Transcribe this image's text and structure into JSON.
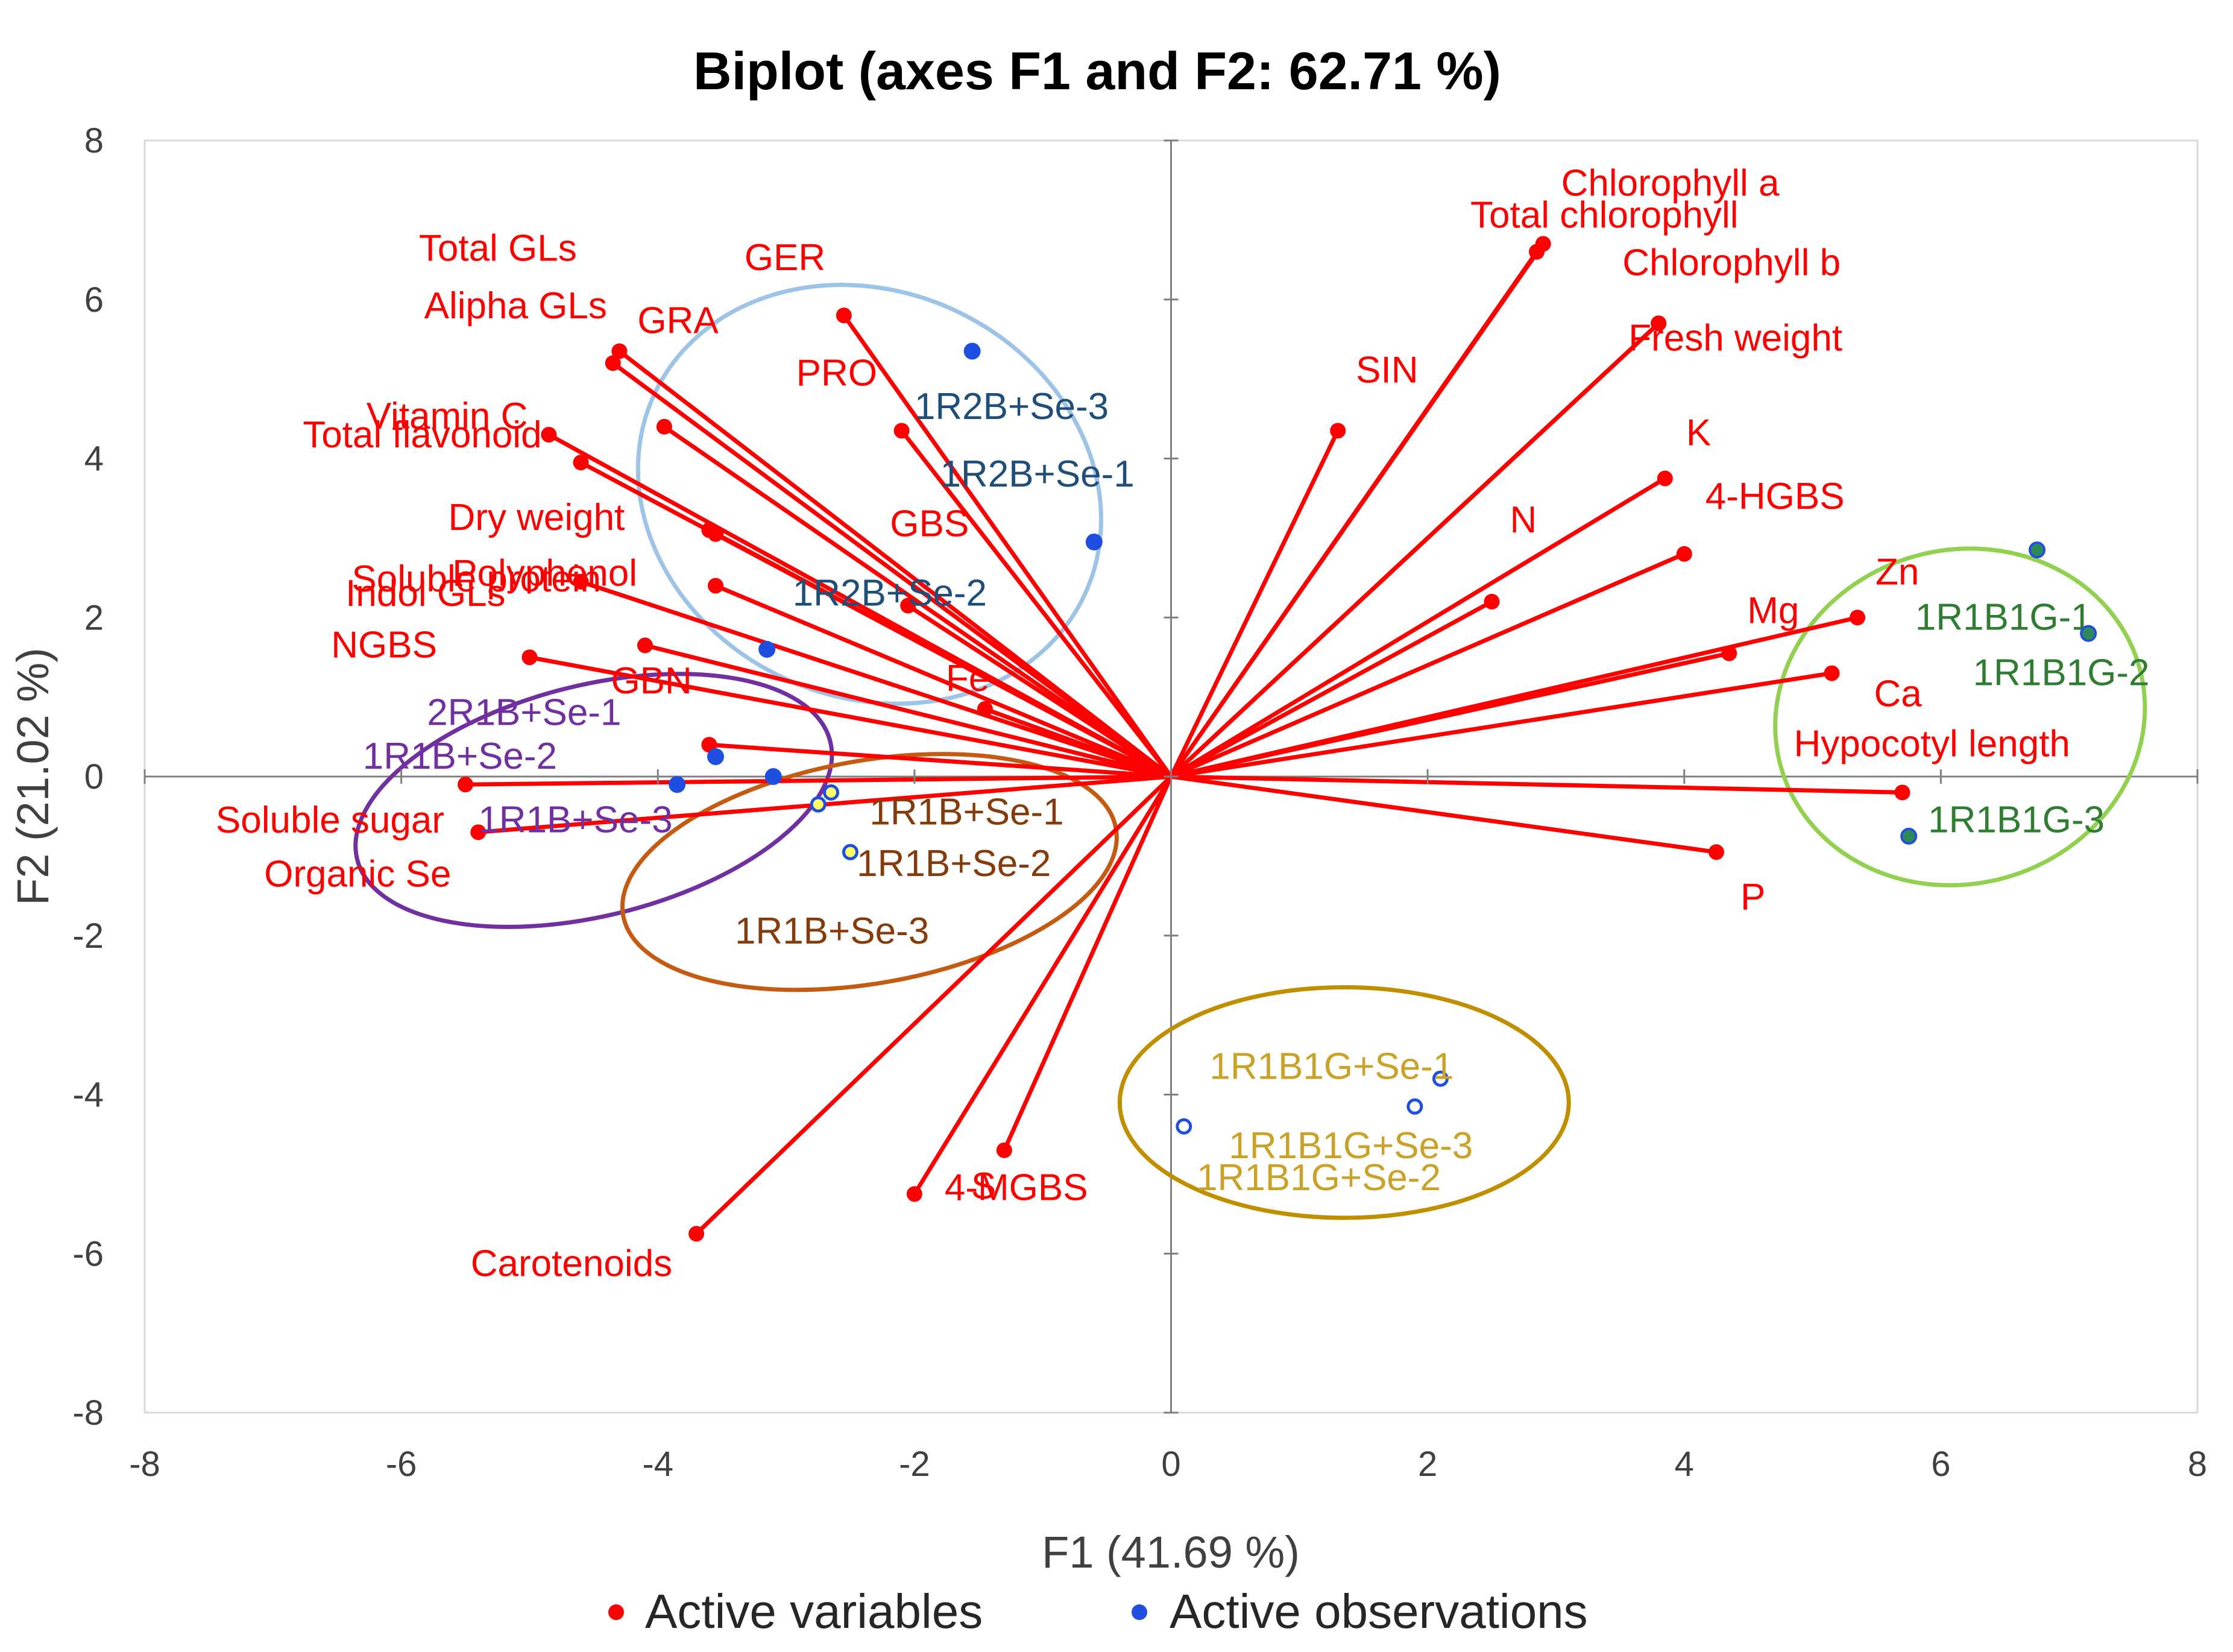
{
  "chart_data": {
    "type": "scatter",
    "title": "Biplot (axes F1 and F2: 62.71 %)",
    "xlabel": "F1 (41.69 %)",
    "ylabel": "F2 (21.02 %)",
    "xlim": [
      -8,
      8
    ],
    "ylim": [
      -8,
      8
    ],
    "xticks": [
      "-8",
      "-6",
      "-4",
      "-2",
      "0",
      "2",
      "4",
      "6",
      "8"
    ],
    "yticks": [
      "-8",
      "-6",
      "-4",
      "-2",
      "0",
      "2",
      "4",
      "6",
      "8"
    ],
    "legend": [
      {
        "label": "Active variables",
        "color": "#ff0000"
      },
      {
        "label": "Active observations",
        "color": "#1f4fe0"
      }
    ],
    "variables": [
      {
        "name": "Chlorophyll a",
        "label": "Chlorophyll a",
        "x": 2.9,
        "y": 6.7
      },
      {
        "name": "Total chlorophyll",
        "label": "Total chlorophyll",
        "x": 2.85,
        "y": 6.6
      },
      {
        "name": "Chlorophyll b",
        "label": "Chlorophyll b",
        "x": 3.8,
        "y": 5.7
      },
      {
        "name": "Fresh weight",
        "label": "Fresh weight",
        "x": 3.8,
        "y": 5.7
      },
      {
        "name": "SIN",
        "label": "SIN",
        "x": 1.3,
        "y": 4.35
      },
      {
        "name": "K",
        "label": "K",
        "x": 3.85,
        "y": 3.75
      },
      {
        "name": "4-HGBS",
        "label": "4-HGBS",
        "x": 4.0,
        "y": 2.8
      },
      {
        "name": "N",
        "label": "N",
        "x": 2.5,
        "y": 2.2
      },
      {
        "name": "Zn",
        "label": "Zn",
        "x": 5.35,
        "y": 2.0
      },
      {
        "name": "Ca",
        "label": "Ca",
        "x": 5.15,
        "y": 1.3
      },
      {
        "name": "Mg",
        "label": "Mg",
        "x": 4.35,
        "y": 1.55
      },
      {
        "name": "Hypocotyl length",
        "label": "Hypocotyl length",
        "x": 5.7,
        "y": -0.2
      },
      {
        "name": "P",
        "label": "P",
        "x": 4.25,
        "y": -0.95
      },
      {
        "name": "GER",
        "label": "GER",
        "x": -2.55,
        "y": 5.8
      },
      {
        "name": "GRA",
        "label": "GRA",
        "x": -4.3,
        "y": 5.35
      },
      {
        "name": "Total GLs",
        "label": "Total GLs",
        "x": -4.35,
        "y": 5.2
      },
      {
        "name": "Alipha GLs",
        "label": "Alipha GLs",
        "x": -3.95,
        "y": 4.4
      },
      {
        "name": "Vitamin C",
        "label": "Vitamin C",
        "x": -4.85,
        "y": 4.3
      },
      {
        "name": "Total flavonoid",
        "label": "Total flavonoid",
        "x": -4.6,
        "y": 3.95
      },
      {
        "name": "PRO",
        "label": "PRO",
        "x": -2.1,
        "y": 4.35
      },
      {
        "name": "Dry weight",
        "label": "Dry weight",
        "x": -3.6,
        "y": 3.1
      },
      {
        "name": "Soluble protein",
        "label": "Soluble protein",
        "x": -3.55,
        "y": 3.05
      },
      {
        "name": "Polyphenol",
        "label": "Polyphenol",
        "x": -3.55,
        "y": 2.4
      },
      {
        "name": "GBS",
        "label": "GBS",
        "x": -2.05,
        "y": 2.15
      },
      {
        "name": "Indol GLs",
        "label": "Indol GLs",
        "x": -4.6,
        "y": 2.45
      },
      {
        "name": "NGBS",
        "label": "NGBS",
        "x": -4.1,
        "y": 1.65
      },
      {
        "name": "Fe",
        "label": "Fe",
        "x": -1.45,
        "y": 0.85
      },
      {
        "name": "GBN",
        "label": "GBN",
        "x": -5.0,
        "y": 1.5
      },
      {
        "name": "GBN-2",
        "label": "",
        "x": -3.6,
        "y": 0.4
      },
      {
        "name": "Soluble sugar",
        "label": "Soluble sugar",
        "x": -5.5,
        "y": -0.1
      },
      {
        "name": "Organic Se",
        "label": "Organic Se",
        "x": -5.4,
        "y": -0.7
      },
      {
        "name": "S",
        "label": "S",
        "x": -1.3,
        "y": -4.7
      },
      {
        "name": "4-MGBS",
        "label": "4-MGBS",
        "x": -2.0,
        "y": -5.25
      },
      {
        "name": "Carotenoids",
        "label": "Carotenoids",
        "x": -3.7,
        "y": -5.75
      }
    ],
    "observations": [
      {
        "label": "1R2B+Se-3",
        "x": -1.55,
        "y": 5.35,
        "group": "1R2B+Se"
      },
      {
        "label": "1R2B+Se-1",
        "x": -0.6,
        "y": 2.95,
        "group": "1R2B+Se"
      },
      {
        "label": "1R2B+Se-2",
        "x": -3.15,
        "y": 1.6,
        "group": "1R2B+Se"
      },
      {
        "label": "2R1B+Se-1",
        "x": -3.55,
        "y": 0.25,
        "group": "2R1B+Se"
      },
      {
        "label": "1R1B+Se-2",
        "x": -3.85,
        "y": -0.1,
        "group": "2R1B+Se"
      },
      {
        "label": "1R1B+Se-3",
        "x": -3.1,
        "y": 0.0,
        "group": "2R1B+Se"
      },
      {
        "label": "1R1B+Se-1",
        "x": -2.65,
        "y": -0.2,
        "group": "1R1B+Se"
      },
      {
        "label": "1R1B+Se-2",
        "x": -2.5,
        "y": -0.95,
        "group": "1R1B+Se"
      },
      {
        "label": "1R1B+Se-3",
        "x": -2.75,
        "y": -0.35,
        "group": "1R1B+Se"
      },
      {
        "label": "1R1B1G-1",
        "x": 6.75,
        "y": 2.85,
        "group": "1R1B1G"
      },
      {
        "label": "1R1B1G-2",
        "x": 7.15,
        "y": 1.8,
        "group": "1R1B1G"
      },
      {
        "label": "1R1B1G-3",
        "x": 5.75,
        "y": -0.75,
        "group": "1R1B1G"
      },
      {
        "label": "1R1B1G+Se-1",
        "x": 2.1,
        "y": -3.8,
        "group": "1R1B1G+Se"
      },
      {
        "label": "1R1B1G+Se-3",
        "x": 1.9,
        "y": -4.15,
        "group": "1R1B1G+Se"
      },
      {
        "label": "1R1B1G+Se-2",
        "x": 0.1,
        "y": -4.4,
        "group": "1R1B1G+Se"
      }
    ],
    "groups": [
      {
        "name": "1R2B+Se",
        "color": "#1f4e79",
        "ellipse": "#9dc3e6",
        "marker": "filled"
      },
      {
        "name": "2R1B+Se",
        "color": "#7030a0",
        "ellipse": "#7030a0",
        "marker": "filled"
      },
      {
        "name": "1R1B+Se",
        "color": "#843c0c",
        "ellipse": "#c55a11",
        "marker": "ring-yellow"
      },
      {
        "name": "1R1B1G",
        "color": "#2e7d32",
        "ellipse": "#92d050",
        "marker": "filled-green"
      },
      {
        "name": "1R1B1G+Se",
        "color": "#c9a227",
        "ellipse": "#bf8f00",
        "marker": "ring-white"
      }
    ]
  }
}
